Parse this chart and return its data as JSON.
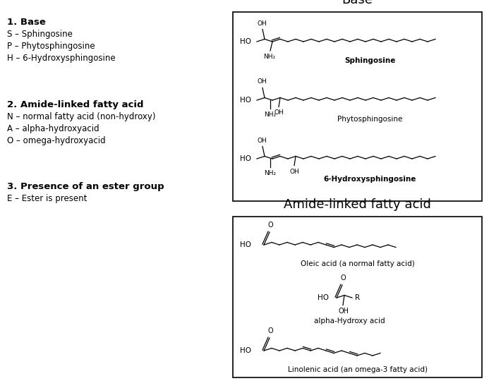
{
  "bg_color": "#ffffff",
  "section1_title": "1. Base",
  "section1_lines": [
    "S – Sphingosine",
    "P – Phytosphingosine",
    "H – 6-Hydroxysphingosine"
  ],
  "section2_title": "2. Amide-linked fatty acid",
  "section2_lines": [
    "N – normal fatty acid (non-hydroxy)",
    "A – alpha-hydroxyacid",
    "O – omega-hydroxyacid"
  ],
  "section3_title": "3. Presence of an ester group",
  "section3_lines": [
    "E – Ester is present"
  ],
  "box1_title": "Base",
  "box2_title": "Amide-linked fatty acid",
  "sphingosine_label": "Sphingosine",
  "phyto_label": "Phytosphingosine",
  "hydroxy_label": "6-Hydroxysphingosine",
  "oleic_label": "Oleic acid (a normal fatty acid)",
  "alpha_label": "alpha-Hydroxy acid",
  "linolenic_label": "Linolenic acid (an omega-3 fatty acid)"
}
